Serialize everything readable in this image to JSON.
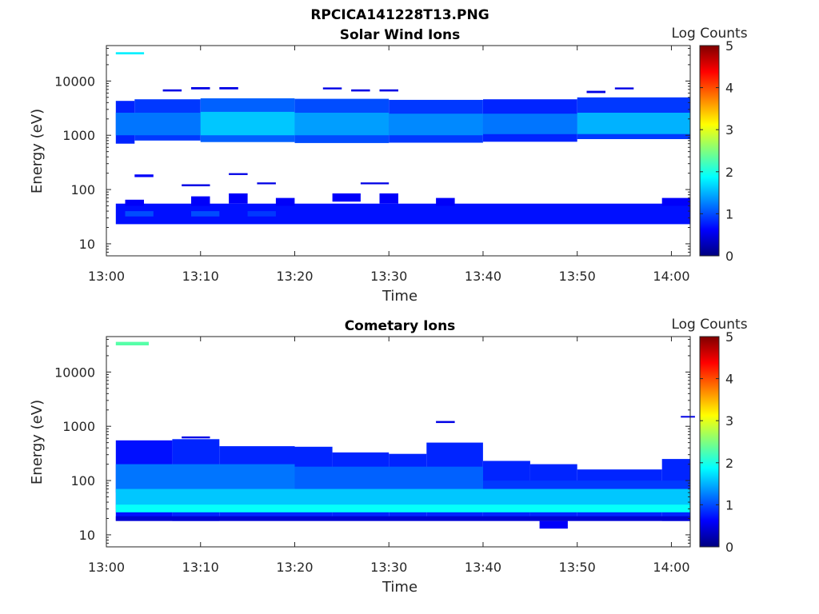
{
  "figure_title": "RPCICA141228T13.PNG",
  "colorbar_label": "Log Counts",
  "colormap": [
    "#00007f",
    "#0000ff",
    "#007fff",
    "#00ffff",
    "#7fff7f",
    "#ffff00",
    "#ff7f00",
    "#ff0000",
    "#7f0000"
  ],
  "chart_data": [
    {
      "type": "heatmap",
      "title": "Solar Wind Ions",
      "xlabel": "Time",
      "ylabel": "Energy (eV)",
      "yscale": "log",
      "xlim": [
        "13:00",
        "14:02"
      ],
      "ylim": [
        6,
        45000
      ],
      "xticks": [
        "13:00",
        "13:10",
        "13:20",
        "13:30",
        "13:40",
        "13:50",
        "14:00"
      ],
      "yticks": [
        10,
        100,
        1000,
        10000
      ],
      "ytick_labels": [
        "10",
        "100",
        "1000",
        "10000"
      ],
      "colorbar": {
        "label": "Log Counts",
        "range": [
          0,
          5
        ],
        "ticks": [
          0,
          1,
          2,
          3,
          4,
          5
        ]
      },
      "cells": [
        {
          "t0": "13:01",
          "t1": "13:04",
          "e0": 31000,
          "e1": 34000,
          "v": 1.8
        },
        {
          "t0": "13:01",
          "t1": "13:03",
          "e0": 700,
          "e1": 4300,
          "v": 0.8
        },
        {
          "t0": "13:03",
          "t1": "13:10",
          "e0": 800,
          "e1": 4600,
          "v": 0.9
        },
        {
          "t0": "13:10",
          "t1": "13:20",
          "e0": 750,
          "e1": 4800,
          "v": 1.1
        },
        {
          "t0": "13:20",
          "t1": "13:30",
          "e0": 720,
          "e1": 4700,
          "v": 1.0
        },
        {
          "t0": "13:30",
          "t1": "13:40",
          "e0": 730,
          "e1": 4500,
          "v": 0.9
        },
        {
          "t0": "13:40",
          "t1": "13:50",
          "e0": 760,
          "e1": 4600,
          "v": 0.8
        },
        {
          "t0": "13:50",
          "t1": "14:02",
          "e0": 850,
          "e1": 5000,
          "v": 0.9
        },
        {
          "t0": "13:01",
          "t1": "13:10",
          "e0": 1000,
          "e1": 2600,
          "v": 1.2
        },
        {
          "t0": "13:10",
          "t1": "13:20",
          "e0": 1000,
          "e1": 2700,
          "v": 1.6
        },
        {
          "t0": "13:20",
          "t1": "13:30",
          "e0": 1000,
          "e1": 2600,
          "v": 1.4
        },
        {
          "t0": "13:30",
          "t1": "13:40",
          "e0": 1000,
          "e1": 2500,
          "v": 1.3
        },
        {
          "t0": "13:40",
          "t1": "13:50",
          "e0": 1050,
          "e1": 2500,
          "v": 1.2
        },
        {
          "t0": "13:50",
          "t1": "14:02",
          "e0": 1050,
          "e1": 2600,
          "v": 1.5
        },
        {
          "t0": "13:06",
          "t1": "13:08",
          "e0": 6400,
          "e1": 7000,
          "v": 0.5
        },
        {
          "t0": "13:09",
          "t1": "13:11",
          "e0": 7000,
          "e1": 7700,
          "v": 0.5
        },
        {
          "t0": "13:12",
          "t1": "13:14",
          "e0": 7000,
          "e1": 7700,
          "v": 0.5
        },
        {
          "t0": "13:23",
          "t1": "13:25",
          "e0": 7000,
          "e1": 7600,
          "v": 0.5
        },
        {
          "t0": "13:26",
          "t1": "13:28",
          "e0": 6400,
          "e1": 7000,
          "v": 0.5
        },
        {
          "t0": "13:29",
          "t1": "13:31",
          "e0": 6400,
          "e1": 7000,
          "v": 0.5
        },
        {
          "t0": "13:51",
          "t1": "13:53",
          "e0": 6000,
          "e1": 6600,
          "v": 0.5
        },
        {
          "t0": "13:54",
          "t1": "13:56",
          "e0": 7000,
          "e1": 7600,
          "v": 0.5
        },
        {
          "t0": "13:03",
          "t1": "13:05",
          "e0": 170,
          "e1": 190,
          "v": 0.6
        },
        {
          "t0": "13:08",
          "t1": "13:11",
          "e0": 115,
          "e1": 125,
          "v": 0.5
        },
        {
          "t0": "13:13",
          "t1": "13:15",
          "e0": 185,
          "e1": 200,
          "v": 0.5
        },
        {
          "t0": "13:16",
          "t1": "13:18",
          "e0": 125,
          "e1": 135,
          "v": 0.5
        },
        {
          "t0": "13:27",
          "t1": "13:30",
          "e0": 125,
          "e1": 135,
          "v": 0.5
        },
        {
          "t0": "13:01",
          "t1": "14:02",
          "e0": 23,
          "e1": 55,
          "v": 0.7
        },
        {
          "t0": "13:02",
          "t1": "13:04",
          "e0": 50,
          "e1": 65,
          "v": 0.6
        },
        {
          "t0": "13:09",
          "t1": "13:11",
          "e0": 50,
          "e1": 75,
          "v": 0.6
        },
        {
          "t0": "13:13",
          "t1": "13:15",
          "e0": 55,
          "e1": 85,
          "v": 0.6
        },
        {
          "t0": "13:18",
          "t1": "13:20",
          "e0": 50,
          "e1": 70,
          "v": 0.6
        },
        {
          "t0": "13:24",
          "t1": "13:27",
          "e0": 60,
          "e1": 85,
          "v": 0.6
        },
        {
          "t0": "13:29",
          "t1": "13:31",
          "e0": 55,
          "e1": 85,
          "v": 0.6
        },
        {
          "t0": "13:35",
          "t1": "13:37",
          "e0": 50,
          "e1": 70,
          "v": 0.6
        },
        {
          "t0": "13:59",
          "t1": "14:02",
          "e0": 50,
          "e1": 70,
          "v": 0.6
        },
        {
          "t0": "13:02",
          "t1": "13:05",
          "e0": 32,
          "e1": 40,
          "v": 1.0
        },
        {
          "t0": "13:09",
          "t1": "13:12",
          "e0": 32,
          "e1": 40,
          "v": 1.0
        },
        {
          "t0": "13:15",
          "t1": "13:18",
          "e0": 32,
          "e1": 40,
          "v": 0.9
        }
      ]
    },
    {
      "type": "heatmap",
      "title": "Cometary Ions",
      "xlabel": "Time",
      "ylabel": "Energy (eV)",
      "yscale": "log",
      "xlim": [
        "13:00",
        "14:02"
      ],
      "ylim": [
        6,
        45000
      ],
      "xticks": [
        "13:00",
        "13:10",
        "13:20",
        "13:30",
        "13:40",
        "13:50",
        "14:00"
      ],
      "yticks": [
        10,
        100,
        1000,
        10000
      ],
      "ytick_labels": [
        "10",
        "100",
        "1000",
        "10000"
      ],
      "colorbar": {
        "label": "Log Counts",
        "range": [
          0,
          5
        ],
        "ticks": [
          0,
          1,
          2,
          3,
          4,
          5
        ]
      },
      "cells": [
        {
          "t0": "13:01",
          "t1": "13:04.5",
          "e0": 31000,
          "e1": 36000,
          "v": 2.3
        },
        {
          "t0": "13:01",
          "t1": "13:07",
          "e0": 18,
          "e1": 550,
          "v": 0.7
        },
        {
          "t0": "13:07",
          "t1": "13:12",
          "e0": 18,
          "e1": 580,
          "v": 0.8
        },
        {
          "t0": "13:12",
          "t1": "13:20",
          "e0": 18,
          "e1": 430,
          "v": 0.8
        },
        {
          "t0": "13:20",
          "t1": "13:24",
          "e0": 18,
          "e1": 420,
          "v": 0.8
        },
        {
          "t0": "13:24",
          "t1": "13:30",
          "e0": 18,
          "e1": 330,
          "v": 0.8
        },
        {
          "t0": "13:30",
          "t1": "13:34",
          "e0": 18,
          "e1": 310,
          "v": 0.8
        },
        {
          "t0": "13:34",
          "t1": "13:40",
          "e0": 18,
          "e1": 500,
          "v": 0.8
        },
        {
          "t0": "13:40",
          "t1": "13:45",
          "e0": 18,
          "e1": 230,
          "v": 0.8
        },
        {
          "t0": "13:45",
          "t1": "13:50",
          "e0": 18,
          "e1": 200,
          "v": 0.8
        },
        {
          "t0": "13:50",
          "t1": "13:59",
          "e0": 18,
          "e1": 160,
          "v": 0.8
        },
        {
          "t0": "13:59",
          "t1": "14:02",
          "e0": 18,
          "e1": 250,
          "v": 0.8
        },
        {
          "t0": "13:08",
          "t1": "13:11",
          "e0": 600,
          "e1": 650,
          "v": 0.5
        },
        {
          "t0": "13:35",
          "t1": "13:37",
          "e0": 1150,
          "e1": 1250,
          "v": 0.5
        },
        {
          "t0": "14:01",
          "t1": "14:02.5",
          "e0": 1450,
          "e1": 1550,
          "v": 0.5
        },
        {
          "t0": "13:46",
          "t1": "13:49",
          "e0": 13,
          "e1": 18,
          "v": 0.6
        },
        {
          "t0": "13:01",
          "t1": "13:20",
          "e0": 60,
          "e1": 200,
          "v": 1.2
        },
        {
          "t0": "13:20",
          "t1": "13:40",
          "e0": 55,
          "e1": 180,
          "v": 1.1
        },
        {
          "t0": "13:40",
          "t1": "14:02",
          "e0": 40,
          "e1": 100,
          "v": 0.9
        },
        {
          "t0": "13:01",
          "t1": "14:02",
          "e0": 30,
          "e1": 70,
          "v": 1.6
        },
        {
          "t0": "13:01",
          "t1": "14:02",
          "e0": 26,
          "e1": 36,
          "v": 1.9
        },
        {
          "t0": "13:01",
          "t1": "14:02",
          "e0": 18,
          "e1": 22,
          "v": 0.4
        }
      ]
    }
  ]
}
